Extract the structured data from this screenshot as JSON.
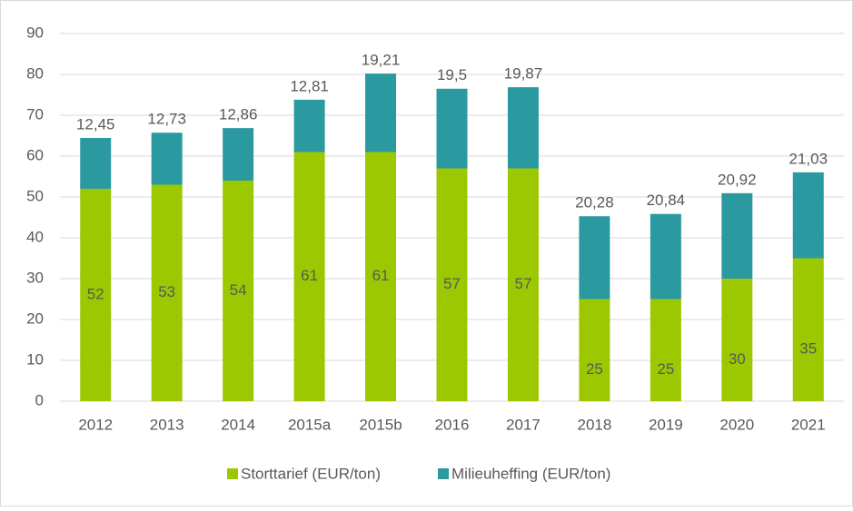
{
  "chart_data": {
    "type": "stacked_bar",
    "categories": [
      "2012",
      "2013",
      "2014",
      "2015a",
      "2015b",
      "2016",
      "2017",
      "2018",
      "2019",
      "2020",
      "2021"
    ],
    "series": [
      {
        "name": "Storttarief (EUR/ton)",
        "color": "#9bc800",
        "values": [
          52,
          53,
          54,
          61,
          61,
          57,
          57,
          25,
          25,
          30,
          35
        ]
      },
      {
        "name": "Milieuheffing (EUR/ton)",
        "color": "#2a9aa0",
        "values": [
          12.45,
          12.73,
          12.86,
          12.81,
          19.21,
          19.5,
          19.87,
          20.28,
          20.84,
          20.92,
          21.03
        ],
        "value_labels": [
          "12,45",
          "12,73",
          "12,86",
          "12,81",
          "19,21",
          "19,5",
          "19,87",
          "20,28",
          "20,84",
          "20,92",
          "21,03"
        ]
      }
    ],
    "ylim": [
      0,
      90
    ],
    "yticks": [
      0,
      10,
      20,
      30,
      40,
      50,
      60,
      70,
      80,
      90
    ],
    "grid": true,
    "legend": "bottom"
  }
}
